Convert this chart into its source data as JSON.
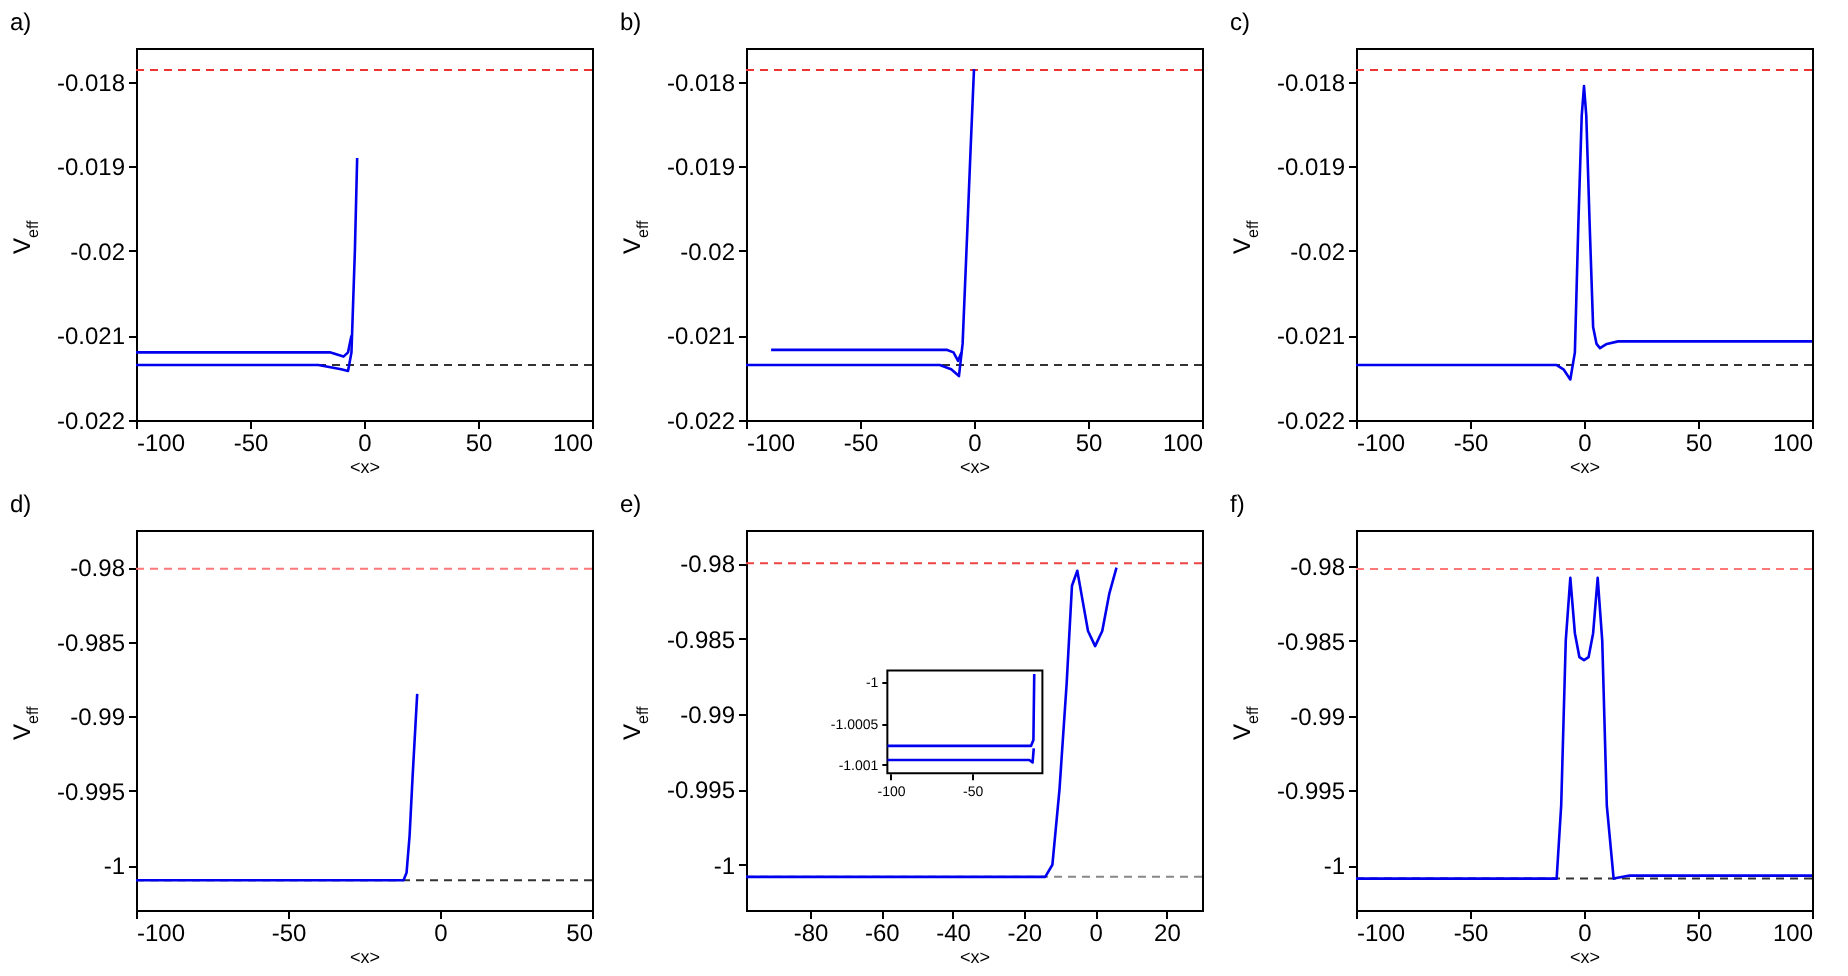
{
  "chart_data": [
    {
      "type": "line",
      "title": "a)",
      "xlabel": "<x>",
      "ylabel": "V$_{eff}$",
      "xlim": [
        -100,
        100
      ],
      "xticks": [
        -100,
        -50,
        0,
        50,
        100
      ],
      "ylim": [
        -0.022,
        -0.0176
      ],
      "yticks": [
        -0.022,
        -0.021,
        -0.02,
        -0.019,
        -0.018
      ],
      "ref_lines": [
        {
          "axis": "y",
          "value": -0.01786,
          "color": "#ee3333",
          "line_style": "dashed"
        },
        {
          "axis": "y",
          "value": -0.02135,
          "color": "#333333",
          "line_style": "dashed"
        }
      ],
      "series": [
        {
          "color": "#0000ee",
          "x": [
            -100,
            -20,
            -10,
            -7,
            -5.5,
            -4,
            -3
          ],
          "values": [
            -0.02135,
            -0.02135,
            -0.0214,
            -0.02142,
            -0.0212,
            -0.02,
            -0.0189
          ]
        },
        {
          "color": "#0000ee",
          "x": [
            -100,
            -15,
            -9,
            -7,
            -5.5
          ],
          "values": [
            -0.0212,
            -0.0212,
            -0.02125,
            -0.0212,
            -0.021
          ]
        }
      ]
    },
    {
      "type": "line",
      "title": "b)",
      "xlabel": "<x>",
      "ylabel": "V$_{eff}$",
      "xlim": [
        -100,
        100
      ],
      "xticks": [
        -100,
        -50,
        0,
        50,
        100
      ],
      "ylim": [
        -0.022,
        -0.0176
      ],
      "yticks": [
        -0.022,
        -0.021,
        -0.02,
        -0.019,
        -0.018
      ],
      "ref_lines": [
        {
          "axis": "y",
          "value": -0.01786,
          "color": "#ee3333",
          "line_style": "dashed"
        },
        {
          "axis": "y",
          "value": -0.02135,
          "color": "#333333",
          "line_style": "dashed"
        }
      ],
      "series": [
        {
          "color": "#0000ee",
          "x": [
            -100,
            -15,
            -10,
            -6.6,
            -5,
            -3,
            -1.5,
            0
          ],
          "values": [
            -0.02135,
            -0.02135,
            -0.0214,
            -0.02148,
            -0.0211,
            -0.0198,
            -0.0188,
            -0.01785
          ]
        },
        {
          "color": "#0000ee",
          "x": [
            -89,
            -12,
            -9,
            -7,
            -5.5
          ],
          "values": [
            -0.02117,
            -0.02117,
            -0.0212,
            -0.0213,
            -0.0212
          ]
        }
      ]
    },
    {
      "type": "line",
      "title": "c)",
      "xlabel": "<x>",
      "ylabel": "V$_{eff}$",
      "xlim": [
        -100,
        100
      ],
      "xticks": [
        -100,
        -50,
        0,
        50,
        100
      ],
      "ylim": [
        -0.022,
        -0.0176
      ],
      "yticks": [
        -0.022,
        -0.021,
        -0.02,
        -0.019,
        -0.018
      ],
      "ref_lines": [
        {
          "axis": "y",
          "value": -0.01786,
          "color": "#ee3333",
          "line_style": "dashed"
        },
        {
          "axis": "y",
          "value": -0.02135,
          "color": "#333333",
          "line_style": "dashed"
        }
      ],
      "series": [
        {
          "color": "#0000ee",
          "x": [
            -100,
            -12,
            -9,
            -6,
            -4,
            -2.5,
            -1,
            0,
            1,
            2.5,
            4,
            5.5,
            7,
            10,
            15,
            100
          ],
          "values": [
            -0.02135,
            -0.02135,
            -0.0214,
            -0.02152,
            -0.0212,
            -0.0197,
            -0.0184,
            -0.01805,
            -0.0184,
            -0.0197,
            -0.0209,
            -0.0211,
            -0.02115,
            -0.0211,
            -0.02107,
            -0.02107
          ]
        }
      ]
    },
    {
      "type": "line",
      "title": "d)",
      "xlabel": "<x>",
      "ylabel": "V$_{eff}$",
      "xlim": [
        -100,
        50
      ],
      "xticks": [
        -100,
        -50,
        0,
        50
      ],
      "ylim": [
        -1.003,
        -0.9775
      ],
      "yticks": [
        -1,
        -0.995,
        -0.99,
        -0.985,
        -0.98
      ],
      "ref_lines": [
        {
          "axis": "y",
          "value": -0.9801,
          "color": "#ff7777",
          "line_style": "dashed"
        },
        {
          "axis": "y",
          "value": -1.001,
          "color": "#333333",
          "line_style": "dashed"
        }
      ],
      "series": [
        {
          "color": "#0000ee",
          "x": [
            -100,
            -12,
            -11,
            -10,
            -9,
            -7.5
          ],
          "values": [
            -1.001,
            -1.001,
            -1.0005,
            -0.998,
            -0.994,
            -0.9885
          ]
        }
      ]
    },
    {
      "type": "line",
      "title": "e)",
      "xlabel": "<x>",
      "ylabel": "V$_{eff}$",
      "xlim": [
        -98,
        30
      ],
      "xticks": [
        -80,
        -60,
        -40,
        -20,
        0,
        20
      ],
      "ylim": [
        -1.003,
        -0.9778
      ],
      "yticks": [
        -1,
        -0.995,
        -0.99,
        -0.985,
        -0.98
      ],
      "ref_lines": [
        {
          "axis": "y",
          "value": -0.98,
          "color": "#ee4444",
          "line_style": "dashed"
        },
        {
          "axis": "y",
          "value": -1.0008,
          "color": "#888888",
          "line_style": "dashed"
        }
      ],
      "series": [
        {
          "color": "#0000ee",
          "x": [
            -98,
            -14,
            -12,
            -10,
            -8,
            -6.5,
            -5,
            -3.5,
            -2,
            0,
            2,
            4,
            6
          ],
          "values": [
            -1.0008,
            -1.0008,
            -1.0,
            -0.995,
            -0.988,
            -0.9815,
            -0.9805,
            -0.9825,
            -0.9845,
            -0.9855,
            -0.9845,
            -0.982,
            -0.9803
          ]
        }
      ]
    },
    {
      "type": "line",
      "xlim": [
        -102,
        -7
      ],
      "xticks": [
        -100,
        -50
      ],
      "ylim": [
        -1.0011,
        -0.99986
      ],
      "yticks": [
        -1.001,
        -1.0005,
        -1
      ],
      "series": [
        {
          "color": "#0000ee",
          "x": [
            -102,
            -14,
            -12.5,
            -12
          ],
          "values": [
            -1.00077,
            -1.00077,
            -1.0007,
            -0.9999
          ]
        },
        {
          "color": "#0000ee",
          "x": [
            -102,
            -15,
            -13,
            -12.3
          ],
          "values": [
            -1.00094,
            -1.00094,
            -1.00097,
            -1.0008
          ]
        }
      ]
    },
    {
      "type": "line",
      "title": "f)",
      "xlabel": "<x>",
      "ylabel": "V$_{eff}$",
      "xlim": [
        -100,
        100
      ],
      "xticks": [
        -100,
        -50,
        0,
        50,
        100
      ],
      "ylim": [
        -1.003,
        -0.9776
      ],
      "yticks": [
        -1,
        -0.995,
        -0.99,
        -0.985,
        -0.98
      ],
      "ref_lines": [
        {
          "axis": "y",
          "value": -0.9802,
          "color": "#ff7777",
          "line_style": "dashed"
        },
        {
          "axis": "y",
          "value": -1.0009,
          "color": "#333333",
          "line_style": "dashed"
        }
      ],
      "series": [
        {
          "color": "#0000ee",
          "x": [
            -100,
            -12,
            -10,
            -8,
            -6,
            -4,
            -2,
            0,
            2,
            4,
            6,
            8,
            10,
            13,
            20,
            100
          ],
          "values": [
            -1.0009,
            -1.0009,
            -0.996,
            -0.985,
            -0.9808,
            -0.9845,
            -0.9861,
            -0.9863,
            -0.9861,
            -0.9845,
            -0.9808,
            -0.985,
            -0.996,
            -1.0009,
            -1.0007,
            -1.0007
          ]
        }
      ]
    }
  ]
}
